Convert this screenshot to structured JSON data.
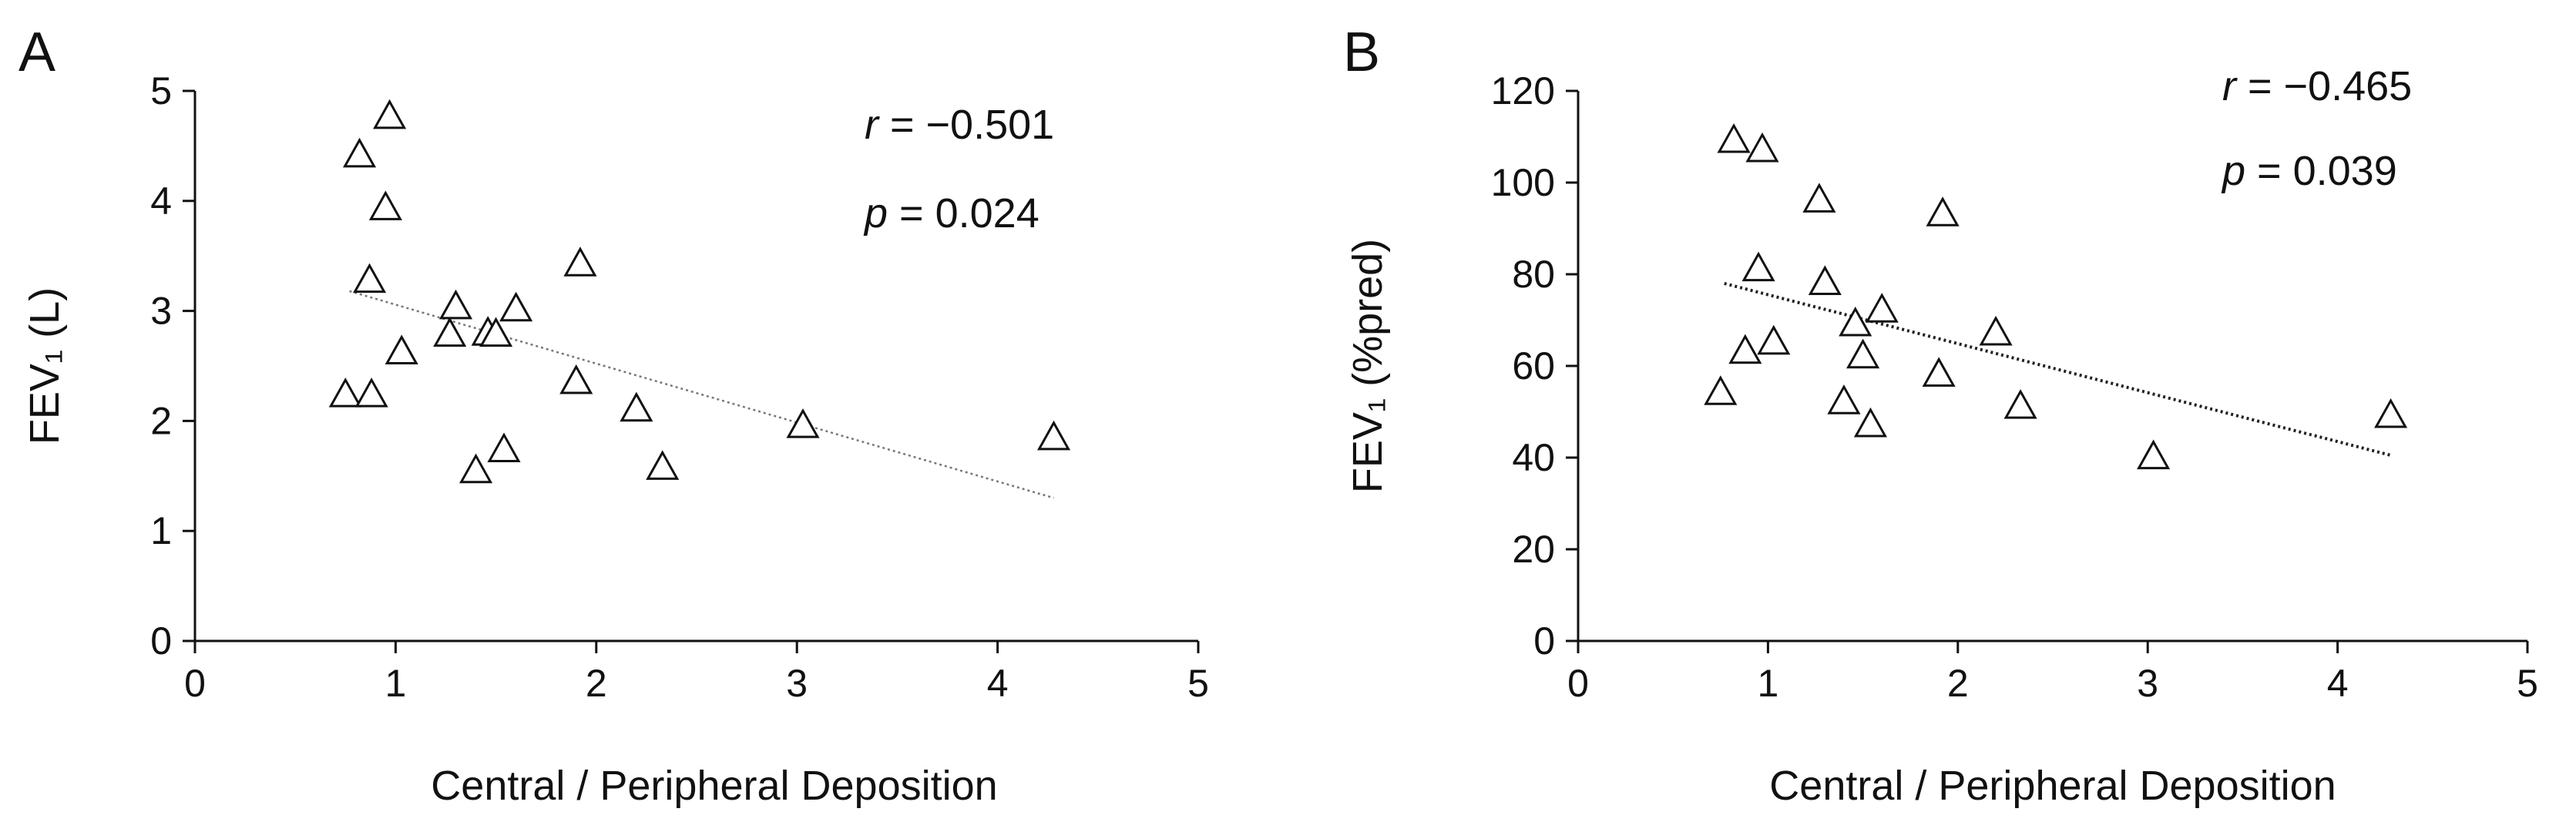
{
  "figure": {
    "background": "#ffffff",
    "marker_color": "#111111",
    "trendline_color": "#777777"
  },
  "chart_data": [
    {
      "type": "scatter",
      "panel_label": "A",
      "xlabel": "Central / Peripheral Deposition",
      "ylabel": "FEV₁ (L)",
      "xlim": [
        0,
        5
      ],
      "ylim": [
        0,
        5
      ],
      "xticks": [
        0,
        1,
        2,
        3,
        4,
        5
      ],
      "yticks": [
        0,
        1,
        2,
        3,
        4,
        5
      ],
      "grid": false,
      "marker": "open-triangle",
      "trendline": {
        "style": "dotted",
        "x": [
          0.77,
          4.28
        ],
        "y": [
          3.18,
          1.3
        ]
      },
      "stats": {
        "r_symbol": "r",
        "r_text": " = −0.501",
        "p_symbol": "p",
        "p_text": " = 0.024"
      },
      "points": [
        {
          "x": 0.75,
          "y": 2.23
        },
        {
          "x": 0.82,
          "y": 4.41
        },
        {
          "x": 0.87,
          "y": 3.27
        },
        {
          "x": 0.88,
          "y": 2.23
        },
        {
          "x": 0.95,
          "y": 3.93
        },
        {
          "x": 0.97,
          "y": 4.76
        },
        {
          "x": 1.03,
          "y": 2.62
        },
        {
          "x": 1.27,
          "y": 2.78
        },
        {
          "x": 1.3,
          "y": 3.03
        },
        {
          "x": 1.4,
          "y": 1.54
        },
        {
          "x": 1.46,
          "y": 2.79
        },
        {
          "x": 1.5,
          "y": 2.78
        },
        {
          "x": 1.54,
          "y": 1.73
        },
        {
          "x": 1.6,
          "y": 3.01
        },
        {
          "x": 1.9,
          "y": 2.35
        },
        {
          "x": 1.92,
          "y": 3.42
        },
        {
          "x": 2.2,
          "y": 2.1
        },
        {
          "x": 2.33,
          "y": 1.57
        },
        {
          "x": 3.03,
          "y": 1.95
        },
        {
          "x": 4.28,
          "y": 1.84
        }
      ]
    },
    {
      "type": "scatter",
      "panel_label": "B",
      "xlabel": "Central / Peripheral Deposition",
      "ylabel": "FEV₁ (%pred)",
      "xlim": [
        0,
        5
      ],
      "ylim": [
        0,
        120
      ],
      "xticks": [
        0,
        1,
        2,
        3,
        4,
        5
      ],
      "yticks": [
        0,
        20,
        40,
        60,
        80,
        100,
        120
      ],
      "grid": false,
      "marker": "open-triangle",
      "trendline": {
        "style": "dotted",
        "x": [
          0.77,
          4.28
        ],
        "y": [
          78,
          40.5
        ]
      },
      "stats": {
        "r_symbol": "r",
        "r_text": " = −0.465",
        "p_symbol": "p",
        "p_text": " = 0.039"
      },
      "points": [
        {
          "x": 0.75,
          "y": 54
        },
        {
          "x": 0.82,
          "y": 109
        },
        {
          "x": 0.88,
          "y": 63
        },
        {
          "x": 0.95,
          "y": 81
        },
        {
          "x": 0.97,
          "y": 107
        },
        {
          "x": 1.03,
          "y": 65
        },
        {
          "x": 1.27,
          "y": 96
        },
        {
          "x": 1.3,
          "y": 78
        },
        {
          "x": 1.4,
          "y": 52
        },
        {
          "x": 1.46,
          "y": 69
        },
        {
          "x": 1.5,
          "y": 62
        },
        {
          "x": 1.54,
          "y": 47
        },
        {
          "x": 1.6,
          "y": 72
        },
        {
          "x": 1.9,
          "y": 58
        },
        {
          "x": 1.92,
          "y": 93
        },
        {
          "x": 2.2,
          "y": 67
        },
        {
          "x": 2.33,
          "y": 51
        },
        {
          "x": 3.03,
          "y": 40
        },
        {
          "x": 4.28,
          "y": 49
        }
      ]
    }
  ]
}
